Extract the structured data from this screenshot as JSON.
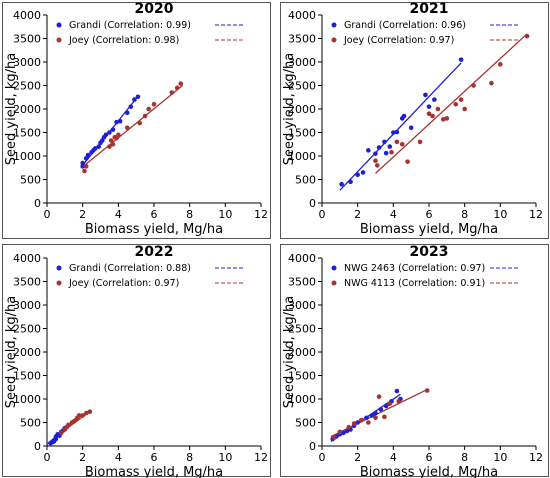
{
  "chart_data": [
    {
      "type": "scatter",
      "title": "2020",
      "xlabel": "Biomass yield, Mg/ha",
      "ylabel": "Seed yield, kg/ha",
      "xlim": [
        0,
        12
      ],
      "ylim": [
        0,
        4000
      ],
      "xticks": [
        "0",
        "2",
        "4",
        "6",
        "8",
        "10",
        "12"
      ],
      "yticks": [
        "0",
        "500",
        "1000",
        "1500",
        "2000",
        "2500",
        "3000",
        "3500",
        "4000"
      ],
      "legend_position": "top-left",
      "series": [
        {
          "name": "Grandi (Correlation: 0.99)",
          "color": "#1f1fd6",
          "points": [
            [
              2.0,
              780
            ],
            [
              2.0,
              850
            ],
            [
              2.2,
              950
            ],
            [
              2.3,
              1020
            ],
            [
              2.5,
              1080
            ],
            [
              2.6,
              1120
            ],
            [
              2.7,
              1160
            ],
            [
              2.9,
              1200
            ],
            [
              3.0,
              1280
            ],
            [
              3.1,
              1330
            ],
            [
              3.2,
              1400
            ],
            [
              3.3,
              1450
            ],
            [
              3.5,
              1500
            ],
            [
              3.7,
              1560
            ],
            [
              3.9,
              1720
            ],
            [
              4.1,
              1740
            ],
            [
              4.5,
              1920
            ],
            [
              4.7,
              2050
            ],
            [
              4.9,
              2200
            ],
            [
              5.1,
              2260
            ]
          ],
          "fit": [
            [
              2.0,
              800
            ],
            [
              5.1,
              2270
            ]
          ]
        },
        {
          "name": "Joey (Correlation: 0.98)",
          "color": "#a83232",
          "points": [
            [
              2.1,
              680
            ],
            [
              2.2,
              780
            ],
            [
              3.5,
              1200
            ],
            [
              3.6,
              1330
            ],
            [
              3.7,
              1250
            ],
            [
              3.8,
              1400
            ],
            [
              3.9,
              1380
            ],
            [
              4.0,
              1450
            ],
            [
              4.5,
              1600
            ],
            [
              5.2,
              1700
            ],
            [
              5.5,
              1850
            ],
            [
              5.7,
              2000
            ],
            [
              6.0,
              2100
            ],
            [
              7.0,
              2350
            ],
            [
              7.3,
              2450
            ],
            [
              7.5,
              2540
            ]
          ],
          "fit": [
            [
              2.1,
              800
            ],
            [
              7.6,
              2500
            ]
          ]
        }
      ]
    },
    {
      "type": "scatter",
      "title": "2021",
      "xlabel": "Biomass yield, Mg/ha",
      "ylabel": "Seed yield, kg/ha",
      "xlim": [
        0,
        12
      ],
      "ylim": [
        0,
        4000
      ],
      "xticks": [
        "0",
        "2",
        "4",
        "6",
        "8",
        "10",
        "12"
      ],
      "yticks": [
        "0",
        "500",
        "1000",
        "1500",
        "2000",
        "2500",
        "3000",
        "3500",
        "4000"
      ],
      "legend_position": "top-left",
      "series": [
        {
          "name": "Grandi (Correlation: 0.96)",
          "color": "#1f1fd6",
          "points": [
            [
              1.1,
              400
            ],
            [
              1.6,
              450
            ],
            [
              2.0,
              600
            ],
            [
              2.3,
              650
            ],
            [
              2.6,
              1120
            ],
            [
              3.0,
              1050
            ],
            [
              3.2,
              1180
            ],
            [
              3.5,
              1300
            ],
            [
              3.6,
              1060
            ],
            [
              3.8,
              1200
            ],
            [
              4.0,
              1500
            ],
            [
              4.2,
              1510
            ],
            [
              4.5,
              1800
            ],
            [
              4.6,
              1850
            ],
            [
              5.0,
              1600
            ],
            [
              5.8,
              2300
            ],
            [
              6.0,
              2050
            ],
            [
              6.3,
              2200
            ],
            [
              7.8,
              3050
            ]
          ],
          "fit": [
            [
              1.0,
              270
            ],
            [
              7.8,
              2980
            ]
          ]
        },
        {
          "name": "Joey (Correlation: 0.97)",
          "color": "#a83232",
          "points": [
            [
              3.0,
              900
            ],
            [
              3.1,
              800
            ],
            [
              3.9,
              1080
            ],
            [
              4.2,
              1300
            ],
            [
              4.5,
              1250
            ],
            [
              4.8,
              880
            ],
            [
              5.5,
              1300
            ],
            [
              6.0,
              1900
            ],
            [
              6.2,
              1850
            ],
            [
              6.5,
              2000
            ],
            [
              6.8,
              1780
            ],
            [
              7.0,
              1800
            ],
            [
              7.5,
              2100
            ],
            [
              7.8,
              2200
            ],
            [
              8.0,
              2000
            ],
            [
              8.5,
              2500
            ],
            [
              9.5,
              2550
            ],
            [
              10.0,
              2950
            ],
            [
              11.5,
              3550
            ]
          ],
          "fit": [
            [
              3.0,
              630
            ],
            [
              11.5,
              3600
            ]
          ]
        }
      ]
    },
    {
      "type": "scatter",
      "title": "2022",
      "xlabel": "Biomass yield, Mg/ha",
      "ylabel": "Seed yield, kg/ha",
      "xlim": [
        0,
        12
      ],
      "ylim": [
        0,
        4000
      ],
      "xticks": [
        "0",
        "2",
        "4",
        "6",
        "8",
        "10",
        "12"
      ],
      "yticks": [
        "0",
        "500",
        "1000",
        "1500",
        "2000",
        "2500",
        "3000",
        "3500",
        "4000"
      ],
      "legend_position": "top-left",
      "series": [
        {
          "name": "Grandi (Correlation: 0.88)",
          "color": "#1f1fd6",
          "points": [
            [
              0.2,
              60
            ],
            [
              0.3,
              80
            ],
            [
              0.4,
              100
            ],
            [
              0.5,
              150
            ],
            [
              0.5,
              200
            ],
            [
              0.6,
              250
            ],
            [
              0.7,
              220
            ],
            [
              0.8,
              300
            ],
            [
              0.9,
              330
            ],
            [
              1.0,
              380
            ],
            [
              1.1,
              400
            ]
          ],
          "fit": [
            [
              0.0,
              40
            ],
            [
              1.2,
              420
            ]
          ]
        },
        {
          "name": "Joey (Correlation: 0.97)",
          "color": "#a83232",
          "points": [
            [
              0.8,
              280
            ],
            [
              1.0,
              350
            ],
            [
              1.1,
              400
            ],
            [
              1.2,
              450
            ],
            [
              1.4,
              500
            ],
            [
              1.5,
              520
            ],
            [
              1.6,
              550
            ],
            [
              1.7,
              600
            ],
            [
              1.8,
              650
            ],
            [
              2.0,
              650
            ],
            [
              2.2,
              700
            ],
            [
              2.4,
              730
            ]
          ],
          "fit": [
            [
              0.6,
              230
            ],
            [
              2.5,
              760
            ]
          ]
        }
      ]
    },
    {
      "type": "scatter",
      "title": "2023",
      "xlabel": "Biomass yield, Mg/ha",
      "ylabel": "Seed yield, kg/ha",
      "xlim": [
        0,
        12
      ],
      "ylim": [
        0,
        4000
      ],
      "xticks": [
        "0",
        "2",
        "4",
        "6",
        "8",
        "10",
        "12"
      ],
      "yticks": [
        "0",
        "500",
        "1000",
        "1500",
        "2000",
        "2500",
        "3000",
        "3500",
        "4000"
      ],
      "legend_position": "top-left",
      "series": [
        {
          "name": "NWG 2463 (Correlation: 0.97)",
          "color": "#1f1fd6",
          "points": [
            [
              0.6,
              150
            ],
            [
              0.8,
              200
            ],
            [
              1.0,
              250
            ],
            [
              1.2,
              280
            ],
            [
              1.4,
              320
            ],
            [
              1.6,
              350
            ],
            [
              1.8,
              430
            ],
            [
              2.0,
              500
            ],
            [
              2.2,
              550
            ],
            [
              2.5,
              600
            ],
            [
              2.8,
              650
            ],
            [
              3.0,
              700
            ],
            [
              3.3,
              780
            ],
            [
              3.6,
              850
            ],
            [
              3.9,
              950
            ],
            [
              4.2,
              1170
            ],
            [
              4.4,
              1000
            ]
          ],
          "fit": [
            [
              0.5,
              100
            ],
            [
              4.4,
              1100
            ]
          ]
        },
        {
          "name": "NWG 4113 (Correlation: 0.91)",
          "color": "#a83232",
          "points": [
            [
              0.7,
              180
            ],
            [
              1.0,
              300
            ],
            [
              1.5,
              400
            ],
            [
              1.8,
              480
            ],
            [
              2.2,
              550
            ],
            [
              2.6,
              500
            ],
            [
              3.0,
              600
            ],
            [
              3.2,
              1050
            ],
            [
              3.5,
              620
            ],
            [
              3.8,
              900
            ],
            [
              4.3,
              950
            ],
            [
              5.9,
              1180
            ]
          ],
          "fit": [
            [
              0.5,
              200
            ],
            [
              5.9,
              1200
            ]
          ]
        }
      ]
    }
  ]
}
